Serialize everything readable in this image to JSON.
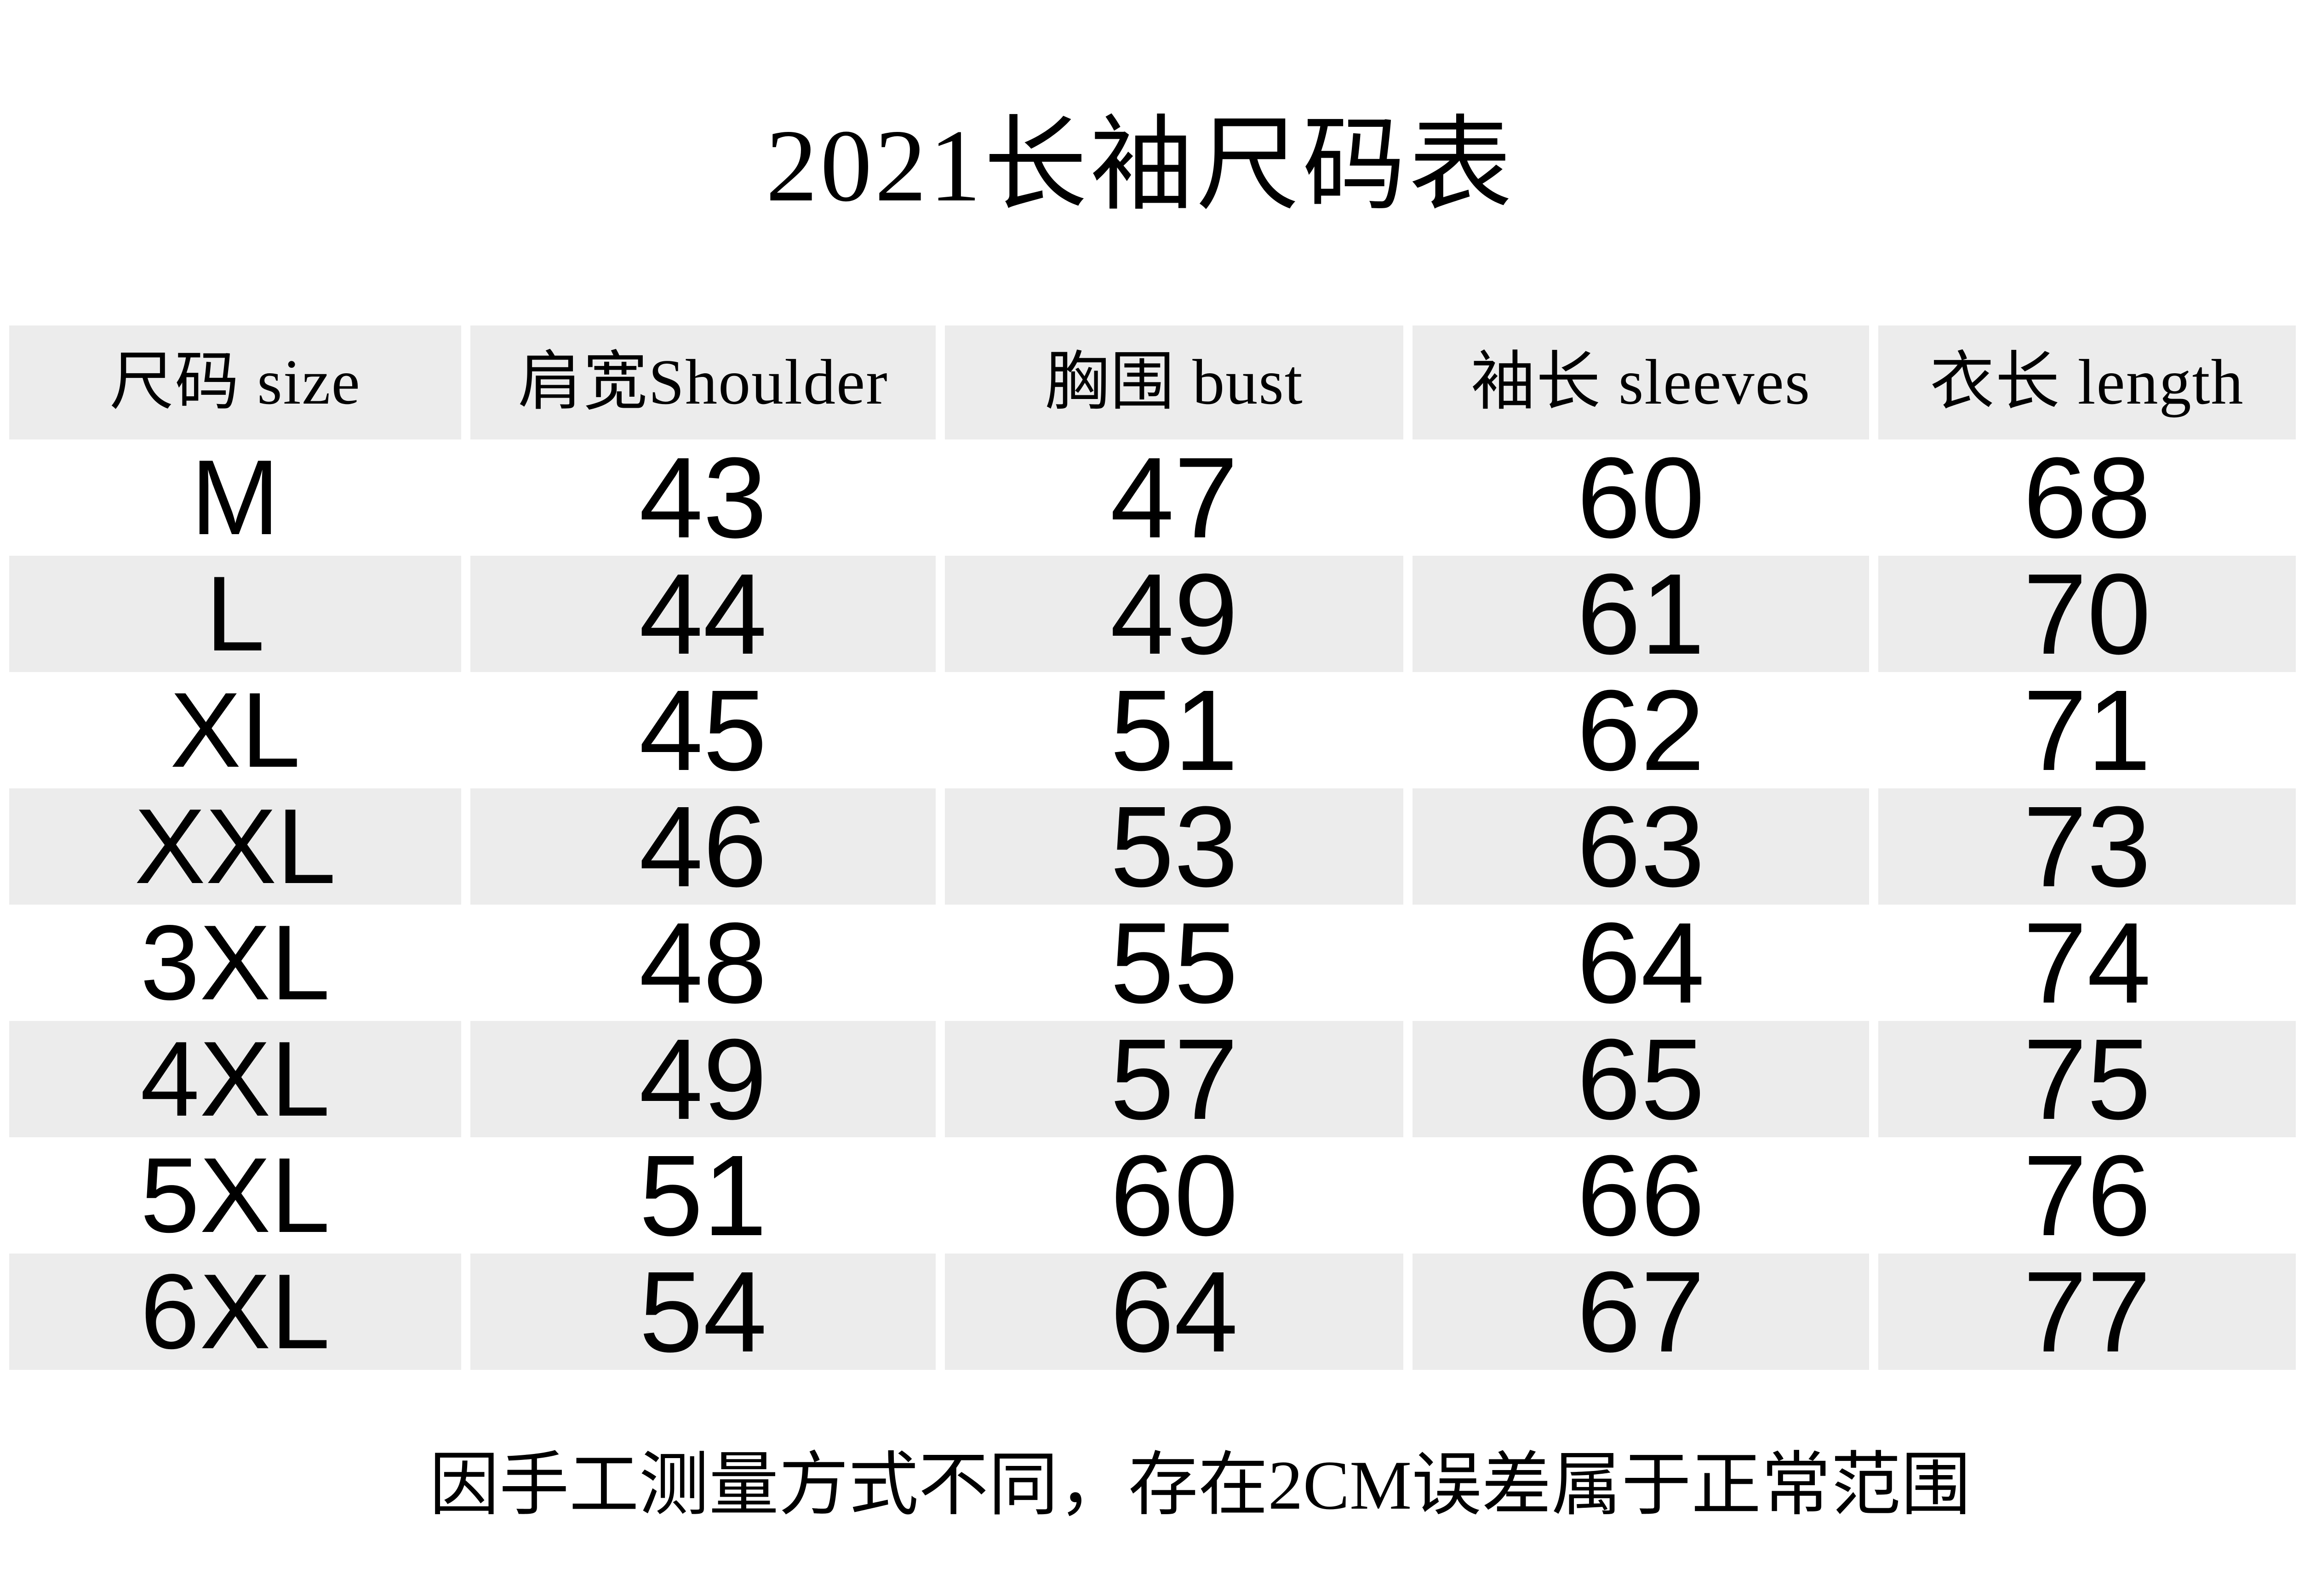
{
  "title": "2021长袖尺码表",
  "table": {
    "headers": [
      "尺码 size",
      "肩宽Shoulder",
      "胸围 bust",
      "袖长 sleeves",
      "衣长 length"
    ],
    "rows": [
      [
        "M",
        "43",
        "47",
        "60",
        "68"
      ],
      [
        "L",
        "44",
        "49",
        "61",
        "70"
      ],
      [
        "XL",
        "45",
        "51",
        "62",
        "71"
      ],
      [
        "XXL",
        "46",
        "53",
        "63",
        "73"
      ],
      [
        "3XL",
        "48",
        "55",
        "64",
        "74"
      ],
      [
        "4XL",
        "49",
        "57",
        "65",
        "75"
      ],
      [
        "5XL",
        "51",
        "60",
        "66",
        "76"
      ],
      [
        "6XL",
        "54",
        "64",
        "67",
        "77"
      ]
    ]
  },
  "footer_note": "因手工测量方式不同，存在2CM误差属于正常范围",
  "colors": {
    "background": "#ffffff",
    "stripe": "#ececec",
    "text": "#000000"
  }
}
